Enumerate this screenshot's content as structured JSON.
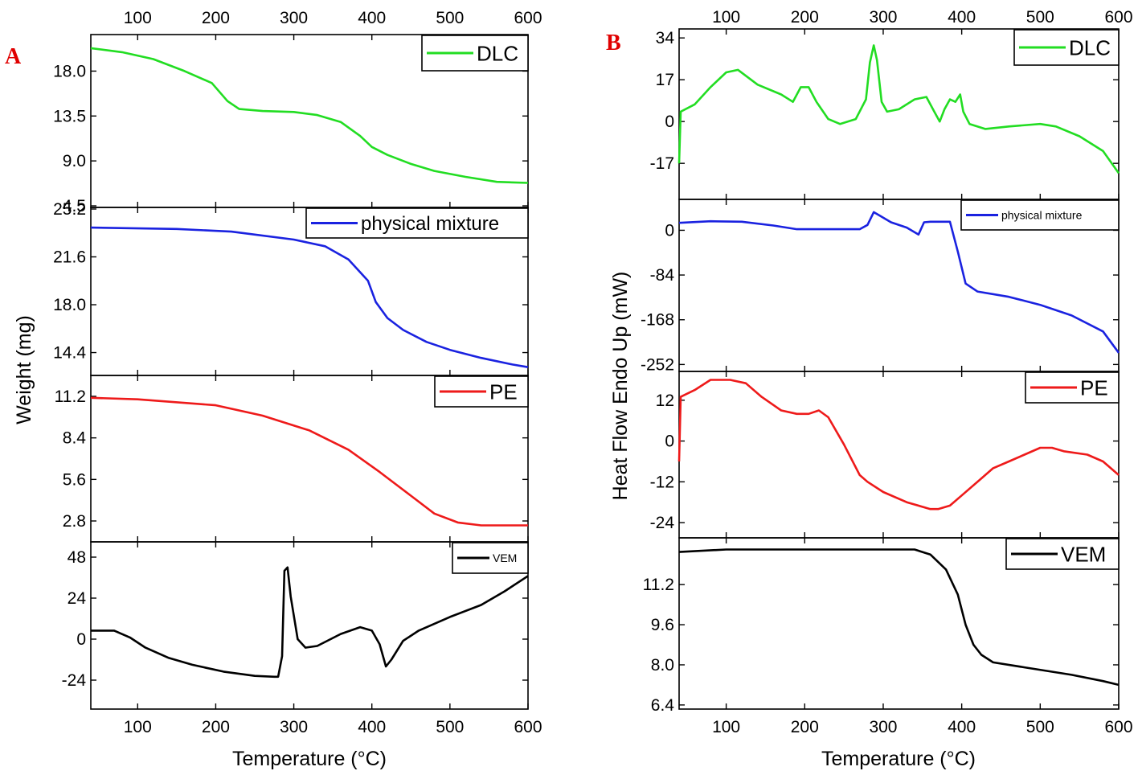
{
  "chart_data": [
    {
      "label": "A",
      "type": "line",
      "xlabel": "Temperature (°C)",
      "ylabel": "Weight (mg)",
      "x_ticks": [
        100,
        200,
        300,
        400,
        500,
        600
      ],
      "xlim": [
        40,
        600
      ],
      "grid": false,
      "legend_position": "top-right",
      "panels": [
        {
          "series": [
            {
              "name": "DLC",
              "color": "#22dd22",
              "points": [
                [
                  40,
                  20.3
                ],
                [
                  80,
                  19.9
                ],
                [
                  120,
                  19.2
                ],
                [
                  160,
                  18.0
                ],
                [
                  195,
                  16.8
                ],
                [
                  215,
                  15.0
                ],
                [
                  230,
                  14.2
                ],
                [
                  260,
                  14.0
                ],
                [
                  300,
                  13.9
                ],
                [
                  330,
                  13.6
                ],
                [
                  360,
                  12.9
                ],
                [
                  385,
                  11.5
                ],
                [
                  400,
                  10.4
                ],
                [
                  420,
                  9.6
                ],
                [
                  450,
                  8.7
                ],
                [
                  480,
                  8.0
                ],
                [
                  520,
                  7.4
                ],
                [
                  560,
                  6.9
                ],
                [
                  600,
                  6.8
                ]
              ]
            }
          ],
          "ylim": [
            4.5,
            21.5
          ],
          "y_ticks": [
            4.5,
            9.0,
            13.5,
            18.0
          ]
        },
        {
          "series": [
            {
              "name": "physical mixture",
              "color": "#1a22e0",
              "points": [
                [
                  40,
                  23.8
                ],
                [
                  150,
                  23.7
                ],
                [
                  220,
                  23.5
                ],
                [
                  300,
                  22.9
                ],
                [
                  340,
                  22.4
                ],
                [
                  370,
                  21.4
                ],
                [
                  395,
                  19.8
                ],
                [
                  405,
                  18.2
                ],
                [
                  420,
                  17.0
                ],
                [
                  440,
                  16.1
                ],
                [
                  470,
                  15.2
                ],
                [
                  500,
                  14.6
                ],
                [
                  540,
                  14.0
                ],
                [
                  580,
                  13.5
                ],
                [
                  600,
                  13.3
                ]
              ]
            }
          ],
          "ylim": [
            12.8,
            25.2
          ],
          "y_ticks": [
            14.4,
            18.0,
            21.6,
            25.2
          ]
        },
        {
          "series": [
            {
              "name": "PE",
              "color": "#ee1a1a",
              "points": [
                [
                  40,
                  11.1
                ],
                [
                  100,
                  11.0
                ],
                [
                  200,
                  10.6
                ],
                [
                  260,
                  9.9
                ],
                [
                  320,
                  8.9
                ],
                [
                  370,
                  7.6
                ],
                [
                  410,
                  6.1
                ],
                [
                  450,
                  4.5
                ],
                [
                  480,
                  3.3
                ],
                [
                  510,
                  2.7
                ],
                [
                  540,
                  2.5
                ],
                [
                  600,
                  2.5
                ]
              ]
            }
          ],
          "ylim": [
            1.5,
            12.5
          ],
          "y_ticks": [
            2.8,
            5.6,
            8.4,
            11.2
          ]
        },
        {
          "series": [
            {
              "name": "VEM",
              "color": "#000000",
              "points": [
                [
                  40,
                  5
                ],
                [
                  70,
                  5
                ],
                [
                  90,
                  1
                ],
                [
                  110,
                  -5
                ],
                [
                  140,
                  -11
                ],
                [
                  170,
                  -15
                ],
                [
                  210,
                  -19
                ],
                [
                  250,
                  -21.5
                ],
                [
                  275,
                  -22
                ],
                [
                  280,
                  -22
                ],
                [
                  285,
                  -10
                ],
                [
                  288,
                  40
                ],
                [
                  292,
                  42
                ],
                [
                  296,
                  25
                ],
                [
                  305,
                  0
                ],
                [
                  315,
                  -5
                ],
                [
                  330,
                  -4
                ],
                [
                  360,
                  3
                ],
                [
                  385,
                  7
                ],
                [
                  400,
                  5
                ],
                [
                  410,
                  -3
                ],
                [
                  418,
                  -16
                ],
                [
                  425,
                  -12
                ],
                [
                  440,
                  -1
                ],
                [
                  460,
                  5
                ],
                [
                  500,
                  13
                ],
                [
                  540,
                  20
                ],
                [
                  570,
                  28
                ],
                [
                  600,
                  37
                ]
              ]
            }
          ],
          "ylim": [
            -40,
            56
          ],
          "y_ticks": [
            -24,
            0,
            24,
            48
          ]
        }
      ]
    },
    {
      "label": "B",
      "type": "line",
      "xlabel": "Temperature (°C)",
      "ylabel": "Heat Flow Endo Up (mW)",
      "x_ticks": [
        100,
        200,
        300,
        400,
        500,
        600
      ],
      "xlim": [
        40,
        600
      ],
      "grid": false,
      "legend_position": "top-right",
      "panels": [
        {
          "series": [
            {
              "name": "DLC",
              "color": "#22dd22",
              "points": [
                [
                  40,
                  -17
                ],
                [
                  42,
                  4
                ],
                [
                  60,
                  7
                ],
                [
                  80,
                  14
                ],
                [
                  100,
                  20
                ],
                [
                  115,
                  21
                ],
                [
                  140,
                  15
                ],
                [
                  170,
                  11
                ],
                [
                  185,
                  8
                ],
                [
                  195,
                  14
                ],
                [
                  205,
                  14
                ],
                [
                  215,
                  8
                ],
                [
                  230,
                  1
                ],
                [
                  245,
                  -1
                ],
                [
                  265,
                  1
                ],
                [
                  278,
                  9
                ],
                [
                  283,
                  24
                ],
                [
                  288,
                  31
                ],
                [
                  292,
                  25
                ],
                [
                  298,
                  8
                ],
                [
                  305,
                  4
                ],
                [
                  320,
                  5
                ],
                [
                  340,
                  9
                ],
                [
                  355,
                  10
                ],
                [
                  365,
                  4
                ],
                [
                  372,
                  0
                ],
                [
                  378,
                  5
                ],
                [
                  385,
                  9
                ],
                [
                  392,
                  8
                ],
                [
                  398,
                  11
                ],
                [
                  402,
                  4
                ],
                [
                  410,
                  -1
                ],
                [
                  430,
                  -3
                ],
                [
                  460,
                  -2
                ],
                [
                  500,
                  -1
                ],
                [
                  520,
                  -2
                ],
                [
                  550,
                  -6
                ],
                [
                  580,
                  -12
                ],
                [
                  600,
                  -21
                ]
              ]
            }
          ],
          "ylim": [
            -31,
            37
          ],
          "y_ticks": [
            -17,
            0,
            17,
            34
          ]
        },
        {
          "series": [
            {
              "name": "physical mixture",
              "color": "#1a22e0",
              "points": [
                [
                  40,
                  14
                ],
                [
                  80,
                  17
                ],
                [
                  120,
                  16
                ],
                [
                  160,
                  9
                ],
                [
                  190,
                  2
                ],
                [
                  230,
                  2
                ],
                [
                  270,
                  2
                ],
                [
                  280,
                  10
                ],
                [
                  288,
                  34
                ],
                [
                  295,
                  28
                ],
                [
                  310,
                  15
                ],
                [
                  330,
                  5
                ],
                [
                  345,
                  -8
                ],
                [
                  352,
                  15
                ],
                [
                  360,
                  16
                ],
                [
                  385,
                  16
                ],
                [
                  395,
                  -40
                ],
                [
                  405,
                  -100
                ],
                [
                  420,
                  -115
                ],
                [
                  460,
                  -125
                ],
                [
                  500,
                  -140
                ],
                [
                  540,
                  -160
                ],
                [
                  580,
                  -190
                ],
                [
                  600,
                  -230
                ]
              ]
            }
          ],
          "ylim": [
            -262,
            55
          ],
          "y_ticks": [
            -252,
            -168,
            -84,
            0
          ]
        },
        {
          "series": [
            {
              "name": "PE",
              "color": "#ee1a1a",
              "points": [
                [
                  40,
                  -6
                ],
                [
                  42,
                  13
                ],
                [
                  60,
                  15
                ],
                [
                  80,
                  18
                ],
                [
                  105,
                  18
                ],
                [
                  125,
                  17
                ],
                [
                  145,
                  13
                ],
                [
                  170,
                  9
                ],
                [
                  190,
                  8
                ],
                [
                  205,
                  8
                ],
                [
                  218,
                  9
                ],
                [
                  230,
                  7
                ],
                [
                  250,
                  -1
                ],
                [
                  270,
                  -10
                ],
                [
                  280,
                  -12
                ],
                [
                  300,
                  -15
                ],
                [
                  330,
                  -18
                ],
                [
                  360,
                  -20
                ],
                [
                  370,
                  -20
                ],
                [
                  385,
                  -19
                ],
                [
                  400,
                  -16
                ],
                [
                  425,
                  -11
                ],
                [
                  440,
                  -8
                ],
                [
                  460,
                  -6
                ],
                [
                  480,
                  -4
                ],
                [
                  500,
                  -2
                ],
                [
                  515,
                  -2
                ],
                [
                  530,
                  -3
                ],
                [
                  560,
                  -4
                ],
                [
                  580,
                  -6
                ],
                [
                  600,
                  -10
                ]
              ]
            }
          ],
          "ylim": [
            -28,
            20
          ],
          "y_ticks": [
            -24,
            -12,
            0,
            12
          ]
        },
        {
          "series": [
            {
              "name": "VEM",
              "color": "#000000",
              "points": [
                [
                  40,
                  12.5
                ],
                [
                  100,
                  12.6
                ],
                [
                  200,
                  12.6
                ],
                [
                  300,
                  12.6
                ],
                [
                  340,
                  12.6
                ],
                [
                  360,
                  12.4
                ],
                [
                  380,
                  11.8
                ],
                [
                  395,
                  10.8
                ],
                [
                  405,
                  9.6
                ],
                [
                  415,
                  8.8
                ],
                [
                  425,
                  8.4
                ],
                [
                  440,
                  8.1
                ],
                [
                  480,
                  7.9
                ],
                [
                  540,
                  7.6
                ],
                [
                  580,
                  7.35
                ],
                [
                  600,
                  7.2
                ]
              ]
            }
          ],
          "ylim": [
            6.3,
            13.0
          ],
          "y_ticks": [
            6.4,
            8.0,
            9.6,
            11.2
          ]
        }
      ]
    }
  ]
}
